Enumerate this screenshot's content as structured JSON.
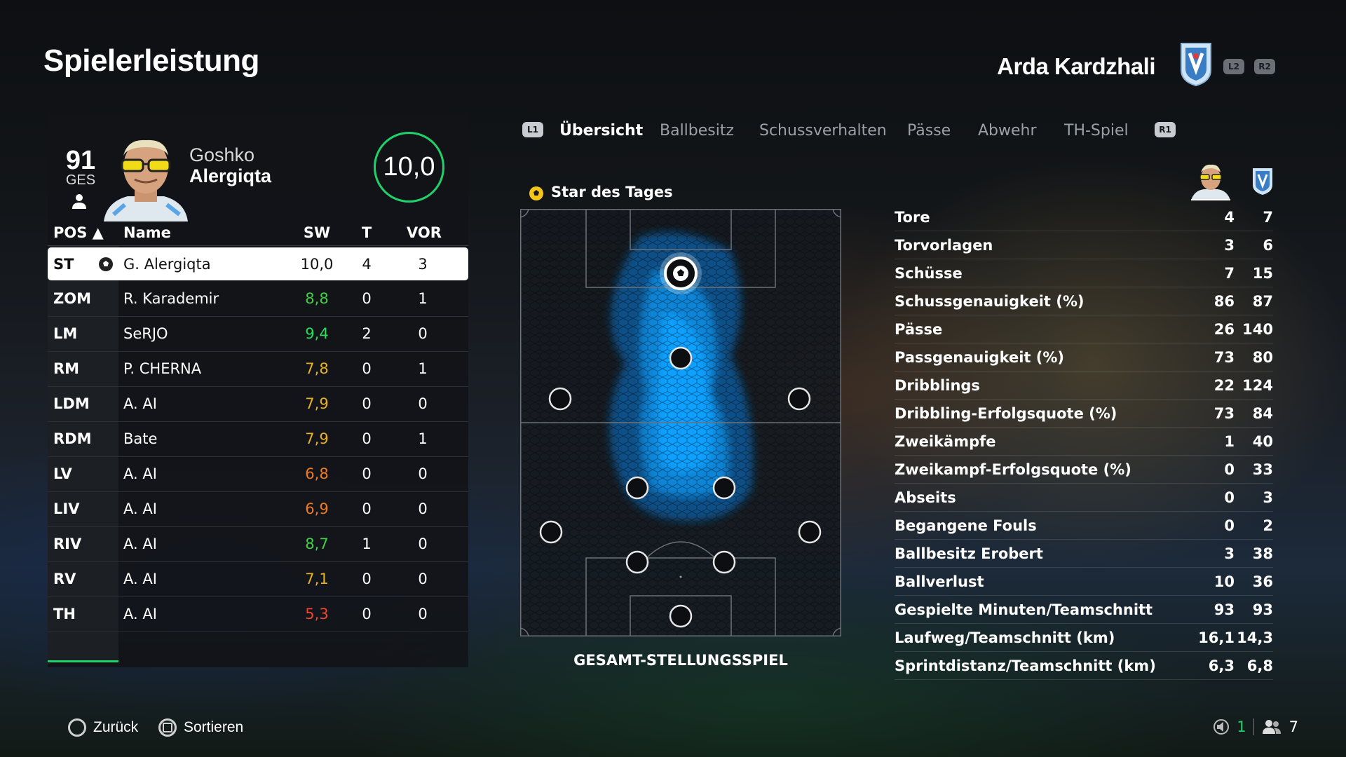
{
  "header": {
    "title": "Spielerleistung",
    "club_name": "Arda Kardzhali",
    "btn_l2": "L2",
    "btn_r2": "R2"
  },
  "player": {
    "overall": "91",
    "overall_label": "GES",
    "first_name": "Goshko",
    "last_name": "Alergiqta",
    "match_rating": "10,0"
  },
  "table": {
    "headers": {
      "pos": "POS ▲",
      "name": "Name",
      "sw": "SW",
      "t": "T",
      "vor": "VOR"
    },
    "rows": [
      {
        "pos": "ST",
        "name": "G. Alergiqta",
        "sw": "10,0",
        "t": "4",
        "vor": "3",
        "color": "#111111"
      },
      {
        "pos": "ZOM",
        "name": "R. Karademir",
        "sw": "8,8",
        "t": "0",
        "vor": "1",
        "color": "#3fcf45"
      },
      {
        "pos": "LM",
        "name": "SeRJO",
        "sw": "9,4",
        "t": "2",
        "vor": "0",
        "color": "#24e05a"
      },
      {
        "pos": "RM",
        "name": "P. CHERNA",
        "sw": "7,8",
        "t": "0",
        "vor": "1",
        "color": "#e7b21d"
      },
      {
        "pos": "LDM",
        "name": "A. AI",
        "sw": "7,9",
        "t": "0",
        "vor": "0",
        "color": "#e7b21d"
      },
      {
        "pos": "RDM",
        "name": "Bate",
        "sw": "7,9",
        "t": "0",
        "vor": "1",
        "color": "#e7b21d"
      },
      {
        "pos": "LV",
        "name": "A. AI",
        "sw": "6,8",
        "t": "0",
        "vor": "0",
        "color": "#f07a1a"
      },
      {
        "pos": "LIV",
        "name": "A. AI",
        "sw": "6,9",
        "t": "0",
        "vor": "0",
        "color": "#f07a1a"
      },
      {
        "pos": "RIV",
        "name": "A. AI",
        "sw": "8,7",
        "t": "1",
        "vor": "0",
        "color": "#3fcf45"
      },
      {
        "pos": "RV",
        "name": "A. AI",
        "sw": "7,1",
        "t": "0",
        "vor": "0",
        "color": "#e7b21d"
      },
      {
        "pos": "TH",
        "name": "A. AI",
        "sw": "5,3",
        "t": "0",
        "vor": "0",
        "color": "#f0432a"
      }
    ]
  },
  "tabs": {
    "btn_l1": "L1",
    "btn_r1": "R1",
    "items": [
      "Übersicht",
      "Ballbesitz",
      "Schussverhalten",
      "Pässe",
      "Abwehr",
      "TH-Spiel"
    ]
  },
  "star_of_day": "Star des Tages",
  "pitch_label": "GESAMT-STELLUNGSSPIEL",
  "stats": [
    {
      "label": "Tore",
      "player": "4",
      "team": "7"
    },
    {
      "label": "Torvorlagen",
      "player": "3",
      "team": "6"
    },
    {
      "label": "Schüsse",
      "player": "7",
      "team": "15"
    },
    {
      "label": "Schussgenauigkeit (%)",
      "player": "86",
      "team": "87"
    },
    {
      "label": "Pässe",
      "player": "26",
      "team": "140"
    },
    {
      "label": "Passgenauigkeit (%)",
      "player": "73",
      "team": "80"
    },
    {
      "label": "Dribblings",
      "player": "22",
      "team": "124"
    },
    {
      "label": "Dribbling-Erfolgsquote (%)",
      "player": "73",
      "team": "84"
    },
    {
      "label": "Zweikämpfe",
      "player": "1",
      "team": "40"
    },
    {
      "label": "Zweikampf-Erfolgsquote (%)",
      "player": "0",
      "team": "33"
    },
    {
      "label": "Abseits",
      "player": "0",
      "team": "3"
    },
    {
      "label": "Begangene Fouls",
      "player": "0",
      "team": "2"
    },
    {
      "label": "Ballbesitz Erobert",
      "player": "3",
      "team": "38"
    },
    {
      "label": "Ballverlust",
      "player": "10",
      "team": "36"
    },
    {
      "label": "Gespielte Minuten/Teamschnitt",
      "player": "93",
      "team": "93"
    },
    {
      "label": "Laufweg/Teamschnitt (km)",
      "player": "16,1",
      "team": "14,3"
    },
    {
      "label": "Sprintdistanz/Teamschnitt (km)",
      "player": "6,3",
      "team": "6,8"
    }
  ],
  "footer": {
    "back": "Zurück",
    "sort": "Sortieren",
    "mute_count": "1",
    "people_count": "7"
  },
  "colors": {
    "accent": "#1fd16b",
    "heat": "#0ea0ff"
  }
}
